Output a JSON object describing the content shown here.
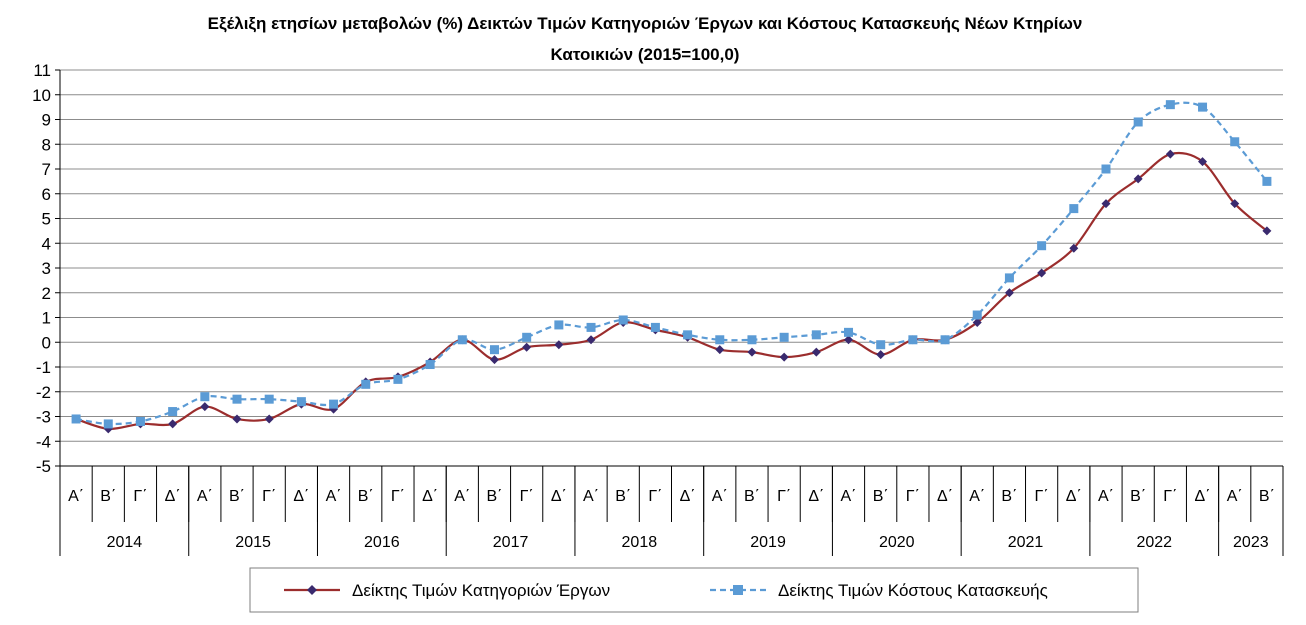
{
  "chart_data": {
    "type": "line",
    "title_line1": "Εξέλιξη ετησίων μεταβολών (%) Δεικτών Τιμών Κατηγοριών Έργων και Κόστους Κατασκευής Νέων Κτηρίων",
    "title_line2": "Κατοικιών (2015=100,0)",
    "ylim": [
      -5,
      11
    ],
    "yticks": [
      11,
      10,
      9,
      8,
      7,
      6,
      5,
      4,
      3,
      2,
      1,
      0,
      -1,
      -2,
      -3,
      -4,
      -5
    ],
    "grid": true,
    "legend_position": "bottom",
    "quarters": [
      "Α΄",
      "Β΄",
      "Γ΄",
      "Δ΄",
      "Α΄",
      "Β΄",
      "Γ΄",
      "Δ΄",
      "Α΄",
      "Β΄",
      "Γ΄",
      "Δ΄",
      "Α΄",
      "Β΄",
      "Γ΄",
      "Δ΄",
      "Α΄",
      "Β΄",
      "Γ΄",
      "Δ΄",
      "Α΄",
      "Β΄",
      "Γ΄",
      "Δ΄",
      "Α΄",
      "Β΄",
      "Γ΄",
      "Δ΄",
      "Α΄",
      "Β΄",
      "Γ΄",
      "Δ΄",
      "Α΄",
      "Β΄",
      "Γ΄",
      "Δ΄",
      "Α΄",
      "Β΄"
    ],
    "years": [
      {
        "label": "2014",
        "count": 4
      },
      {
        "label": "2015",
        "count": 4
      },
      {
        "label": "2016",
        "count": 4
      },
      {
        "label": "2017",
        "count": 4
      },
      {
        "label": "2018",
        "count": 4
      },
      {
        "label": "2019",
        "count": 4
      },
      {
        "label": "2020",
        "count": 4
      },
      {
        "label": "2021",
        "count": 4
      },
      {
        "label": "2022",
        "count": 4
      },
      {
        "label": "2023",
        "count": 2
      }
    ],
    "series": [
      {
        "name": "Δείκτης Τιμών Κατηγοριών Έργων",
        "color": "#9B2D2D",
        "marker": "diamond",
        "marker_color": "#3A2A6E",
        "line_style": "solid",
        "values": [
          -3.1,
          -3.5,
          -3.3,
          -3.3,
          -2.6,
          -3.1,
          -3.1,
          -2.5,
          -2.7,
          -1.6,
          -1.4,
          -0.8,
          0.1,
          -0.7,
          -0.2,
          -0.1,
          0.1,
          0.8,
          0.5,
          0.2,
          -0.3,
          -0.4,
          -0.6,
          -0.4,
          0.1,
          -0.5,
          0.1,
          0.1,
          0.8,
          2.0,
          2.8,
          3.8,
          5.6,
          6.6,
          7.6,
          7.3,
          5.6,
          4.5
        ]
      },
      {
        "name": "Δείκτης Τιμών Κόστους Κατασκευής",
        "color": "#5B9BD5",
        "marker": "square",
        "marker_color": "#5B9BD5",
        "line_style": "dashed",
        "values": [
          -3.1,
          -3.3,
          -3.2,
          -2.8,
          -2.2,
          -2.3,
          -2.3,
          -2.4,
          -2.5,
          -1.7,
          -1.5,
          -0.9,
          0.1,
          -0.3,
          0.2,
          0.7,
          0.6,
          0.9,
          0.6,
          0.3,
          0.1,
          0.1,
          0.2,
          0.3,
          0.4,
          -0.1,
          0.1,
          0.1,
          1.1,
          2.6,
          3.9,
          5.4,
          7.0,
          8.9,
          9.6,
          9.5,
          8.1,
          6.5
        ]
      }
    ]
  }
}
